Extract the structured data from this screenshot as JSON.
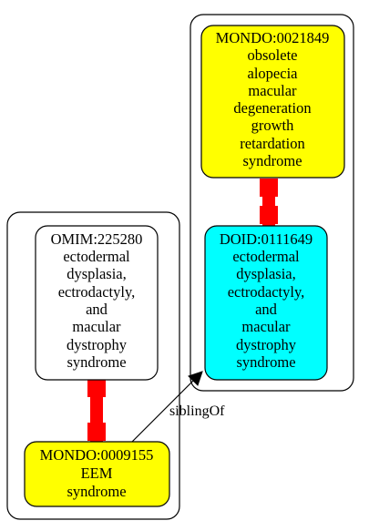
{
  "clusters": [
    {
      "id": "left-cluster"
    },
    {
      "id": "right-cluster"
    }
  ],
  "nodes": {
    "mondo21849": {
      "lines": [
        "MONDO:0021849",
        "obsolete",
        "alopecia",
        "macular",
        "degeneration",
        "growth",
        "retardation",
        "syndrome"
      ],
      "fill": "#ffff00"
    },
    "doid111649": {
      "lines": [
        "DOID:0111649",
        "ectodermal",
        "dysplasia,",
        "ectrodactyly,",
        "and",
        "macular",
        "dystrophy",
        "syndrome"
      ],
      "fill": "#00ffff"
    },
    "omim225280": {
      "lines": [
        "OMIM:225280",
        "ectodermal",
        "dysplasia,",
        "ectrodactyly,",
        "and",
        "macular",
        "dystrophy",
        "syndrome"
      ],
      "fill": "#ffffff"
    },
    "mondo9155": {
      "lines": [
        "MONDO:0009155",
        "EEM",
        "syndrome"
      ],
      "fill": "#ffff00"
    }
  },
  "edges": {
    "sibling_label": "siblingOf",
    "equivalence_color": "#ff0000"
  }
}
